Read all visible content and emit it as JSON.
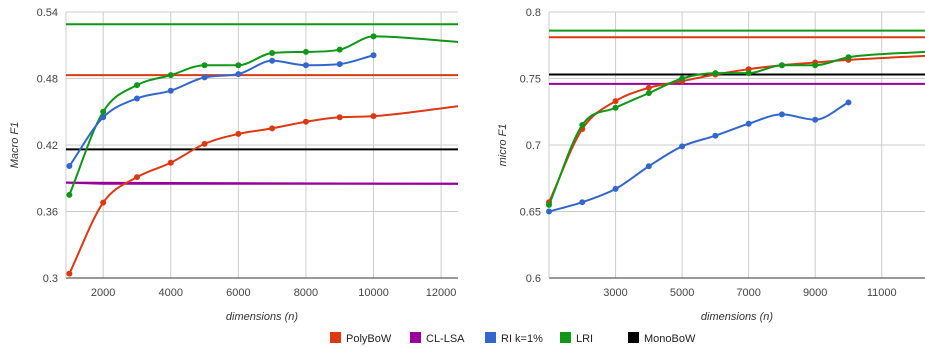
{
  "chart_data": [
    {
      "type": "line",
      "title": "",
      "xlabel": "dimensions (n)",
      "ylabel": "Macro F1",
      "xlim": [
        900,
        12500
      ],
      "ylim": [
        0.3,
        0.54
      ],
      "xticks": [
        2000,
        4000,
        6000,
        8000,
        10000,
        12000
      ],
      "yticks": [
        0.3,
        0.36,
        0.42,
        0.48,
        0.54
      ],
      "grid": true,
      "series": [
        {
          "name": "LRI",
          "color": "#109618",
          "type": "line",
          "x": [
            900,
            12500
          ],
          "y": [
            0.529,
            0.529
          ]
        },
        {
          "name": "PolyBoW",
          "color": "#dc3912",
          "type": "line",
          "x": [
            900,
            12500
          ],
          "y": [
            0.483,
            0.483
          ]
        },
        {
          "name": "MonoBoW",
          "color": "#000000",
          "type": "line",
          "x": [
            900,
            12500
          ],
          "y": [
            0.416,
            0.416
          ]
        },
        {
          "name": "CL-LSA",
          "color": "#990099",
          "type": "line",
          "x": [
            900,
            2000,
            12500
          ],
          "y": [
            0.386,
            0.385,
            0.385
          ]
        },
        {
          "name": "LRI",
          "color": "#109618",
          "type": "curve",
          "x": [
            1000,
            2000,
            3000,
            4000,
            5000,
            6000,
            7000,
            8000,
            9000,
            10000,
            12500
          ],
          "y": [
            0.375,
            0.45,
            0.474,
            0.483,
            0.492,
            0.492,
            0.503,
            0.504,
            0.506,
            0.518,
            0.513
          ]
        },
        {
          "name": "RI k=1%",
          "color": "#3366cc",
          "type": "curve",
          "x": [
            1000,
            2000,
            3000,
            4000,
            5000,
            6000,
            7000,
            8000,
            9000,
            10000
          ],
          "y": [
            0.401,
            0.445,
            0.462,
            0.469,
            0.481,
            0.484,
            0.496,
            0.492,
            0.493,
            0.501
          ]
        },
        {
          "name": "PolyBoW",
          "color": "#dc3912",
          "type": "curve",
          "x": [
            1000,
            2000,
            3000,
            4000,
            5000,
            6000,
            7000,
            8000,
            9000,
            10000,
            12500
          ],
          "y": [
            0.304,
            0.368,
            0.391,
            0.404,
            0.421,
            0.43,
            0.435,
            0.441,
            0.445,
            0.446,
            0.455
          ]
        }
      ]
    },
    {
      "type": "line",
      "title": "",
      "xlabel": "dimensions (n)",
      "ylabel": "micro F1",
      "xlim": [
        1000,
        12300
      ],
      "ylim": [
        0.6,
        0.8
      ],
      "xticks": [
        3000,
        5000,
        7000,
        9000,
        11000
      ],
      "yticks": [
        0.6,
        0.65,
        0.7,
        0.75,
        0.8
      ],
      "grid": true,
      "series": [
        {
          "name": "LRI",
          "color": "#109618",
          "type": "line",
          "x": [
            1000,
            12300
          ],
          "y": [
            0.786,
            0.786
          ]
        },
        {
          "name": "PolyBoW",
          "color": "#dc3912",
          "type": "line",
          "x": [
            1000,
            12300
          ],
          "y": [
            0.781,
            0.781
          ]
        },
        {
          "name": "MonoBoW",
          "color": "#000000",
          "type": "line",
          "x": [
            1000,
            12300
          ],
          "y": [
            0.753,
            0.753
          ]
        },
        {
          "name": "CL-LSA",
          "color": "#990099",
          "type": "line",
          "x": [
            1000,
            12300
          ],
          "y": [
            0.746,
            0.746
          ]
        },
        {
          "name": "PolyBoW",
          "color": "#dc3912",
          "type": "curve",
          "x": [
            1000,
            2000,
            3000,
            4000,
            5000,
            6000,
            7000,
            8000,
            9000,
            10000,
            12300
          ],
          "y": [
            0.657,
            0.712,
            0.733,
            0.743,
            0.748,
            0.753,
            0.757,
            0.76,
            0.762,
            0.764,
            0.767
          ]
        },
        {
          "name": "LRI",
          "color": "#109618",
          "type": "curve",
          "x": [
            1000,
            2000,
            3000,
            4000,
            5000,
            6000,
            7000,
            8000,
            9000,
            10000,
            12300
          ],
          "y": [
            0.655,
            0.715,
            0.728,
            0.739,
            0.75,
            0.754,
            0.754,
            0.76,
            0.76,
            0.766,
            0.77
          ]
        },
        {
          "name": "RI k=1%",
          "color": "#3366cc",
          "type": "curve",
          "x": [
            1000,
            2000,
            3000,
            4000,
            5000,
            6000,
            7000,
            8000,
            9000,
            10000
          ],
          "y": [
            0.65,
            0.657,
            0.667,
            0.684,
            0.699,
            0.707,
            0.716,
            0.723,
            0.719,
            0.732
          ]
        }
      ]
    }
  ],
  "legend": {
    "placement": "bottom",
    "items": [
      {
        "label": "PolyBoW",
        "color": "#dc3912"
      },
      {
        "label": "CL-LSA",
        "color": "#990099"
      },
      {
        "label": "RI k=1%",
        "color": "#3366cc"
      },
      {
        "label": "LRI",
        "color": "#109618"
      },
      {
        "label": "MonoBoW",
        "color": "#000000"
      }
    ]
  }
}
